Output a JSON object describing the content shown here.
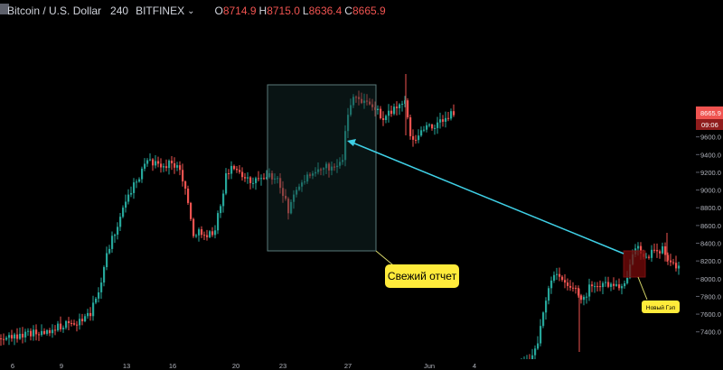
{
  "header": {
    "symbol": "Bitcoin / U.S. Dollar",
    "interval": "240",
    "exchange": "BITFINEX",
    "ohlc": [
      {
        "k": "O",
        "v": "8714.9"
      },
      {
        "k": "H",
        "v": "8715.0"
      },
      {
        "k": "L",
        "v": "8636.4"
      },
      {
        "k": "C",
        "v": "8665.9"
      }
    ]
  },
  "chart_data": {
    "type": "candlestick",
    "y_ticks": [
      7400,
      7600,
      7800,
      8000,
      8200,
      8400,
      8600,
      8800,
      9000,
      9200,
      9400,
      9600,
      9800
    ],
    "y_tick_labels": [
      "7400.0",
      "7600.0",
      "7800.0",
      "8000.0",
      "8200.0",
      "8400.0",
      "8600.0",
      "8800.0",
      "9000.0",
      "9200.0",
      "9400.0",
      "9600.0",
      "9800.0"
    ],
    "x_tick_labels": [
      "6",
      "9",
      "13",
      "16",
      "20",
      "23",
      "27",
      "Jun",
      "4"
    ],
    "last_price": "8665.9",
    "countdown": "09:06",
    "colors": {
      "up": "#26a69a",
      "down": "#ef5350",
      "arrow": "#3fd0e6",
      "label_bg": "#ffeb3b"
    },
    "annotations": [
      {
        "type": "rectangle",
        "label": "Свежий отчет"
      },
      {
        "type": "rectangle",
        "label": "Новый Гэп"
      },
      {
        "type": "arrow"
      }
    ]
  }
}
